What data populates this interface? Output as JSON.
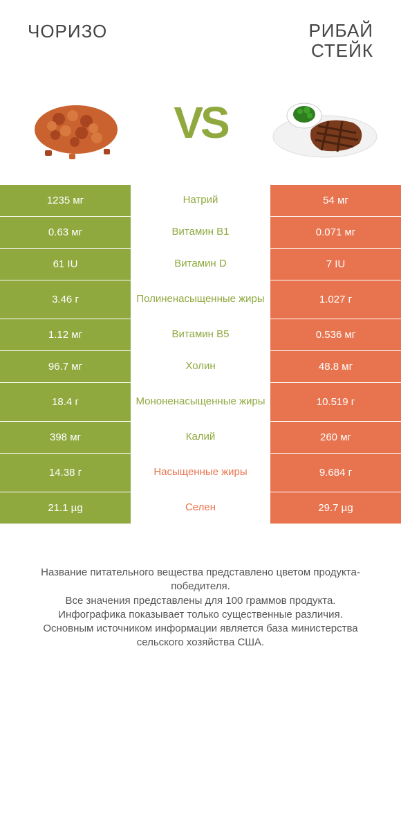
{
  "colors": {
    "green": "#8fa93f",
    "orange": "#e8744f",
    "bg": "#ffffff",
    "text": "#444444",
    "footer_text": "#555555"
  },
  "typography": {
    "title_fontsize": 26,
    "vs_fontsize": 64,
    "cell_fontsize": 15,
    "footer_fontsize": 15
  },
  "header": {
    "left_title": "ЧОРИЗО",
    "right_title_line1": "РИБАЙ",
    "right_title_line2": "СТЕЙК",
    "vs_label": "VS"
  },
  "rows": [
    {
      "left": "1235 мг",
      "label": "Натрий",
      "right": "54 мг",
      "winner": "left",
      "tall": false
    },
    {
      "left": "0.63 мг",
      "label": "Витамин B1",
      "right": "0.071 мг",
      "winner": "left",
      "tall": false
    },
    {
      "left": "61 IU",
      "label": "Витамин D",
      "right": "7 IU",
      "winner": "left",
      "tall": false
    },
    {
      "left": "3.46 г",
      "label": "Полиненасыщенные жиры",
      "right": "1.027 г",
      "winner": "left",
      "tall": true
    },
    {
      "left": "1.12 мг",
      "label": "Витамин B5",
      "right": "0.536 мг",
      "winner": "left",
      "tall": false
    },
    {
      "left": "96.7 мг",
      "label": "Холин",
      "right": "48.8 мг",
      "winner": "left",
      "tall": false
    },
    {
      "left": "18.4 г",
      "label": "Мононенасыщенные жиры",
      "right": "10.519 г",
      "winner": "left",
      "tall": true
    },
    {
      "left": "398 мг",
      "label": "Калий",
      "right": "260 мг",
      "winner": "left",
      "tall": false
    },
    {
      "left": "14.38 г",
      "label": "Насыщенные жиры",
      "right": "9.684 г",
      "winner": "right",
      "tall": true
    },
    {
      "left": "21.1 µg",
      "label": "Селен",
      "right": "29.7 µg",
      "winner": "right",
      "tall": false
    }
  ],
  "footer": {
    "line1": "Название питательного вещества представлено цветом продукта-победителя.",
    "line2": "Все значения представлены для 100 граммов продукта.",
    "line3": "Инфографика показывает только существенные различия.",
    "line4": "Основным источником информации является база министерства сельского хозяйства США."
  }
}
